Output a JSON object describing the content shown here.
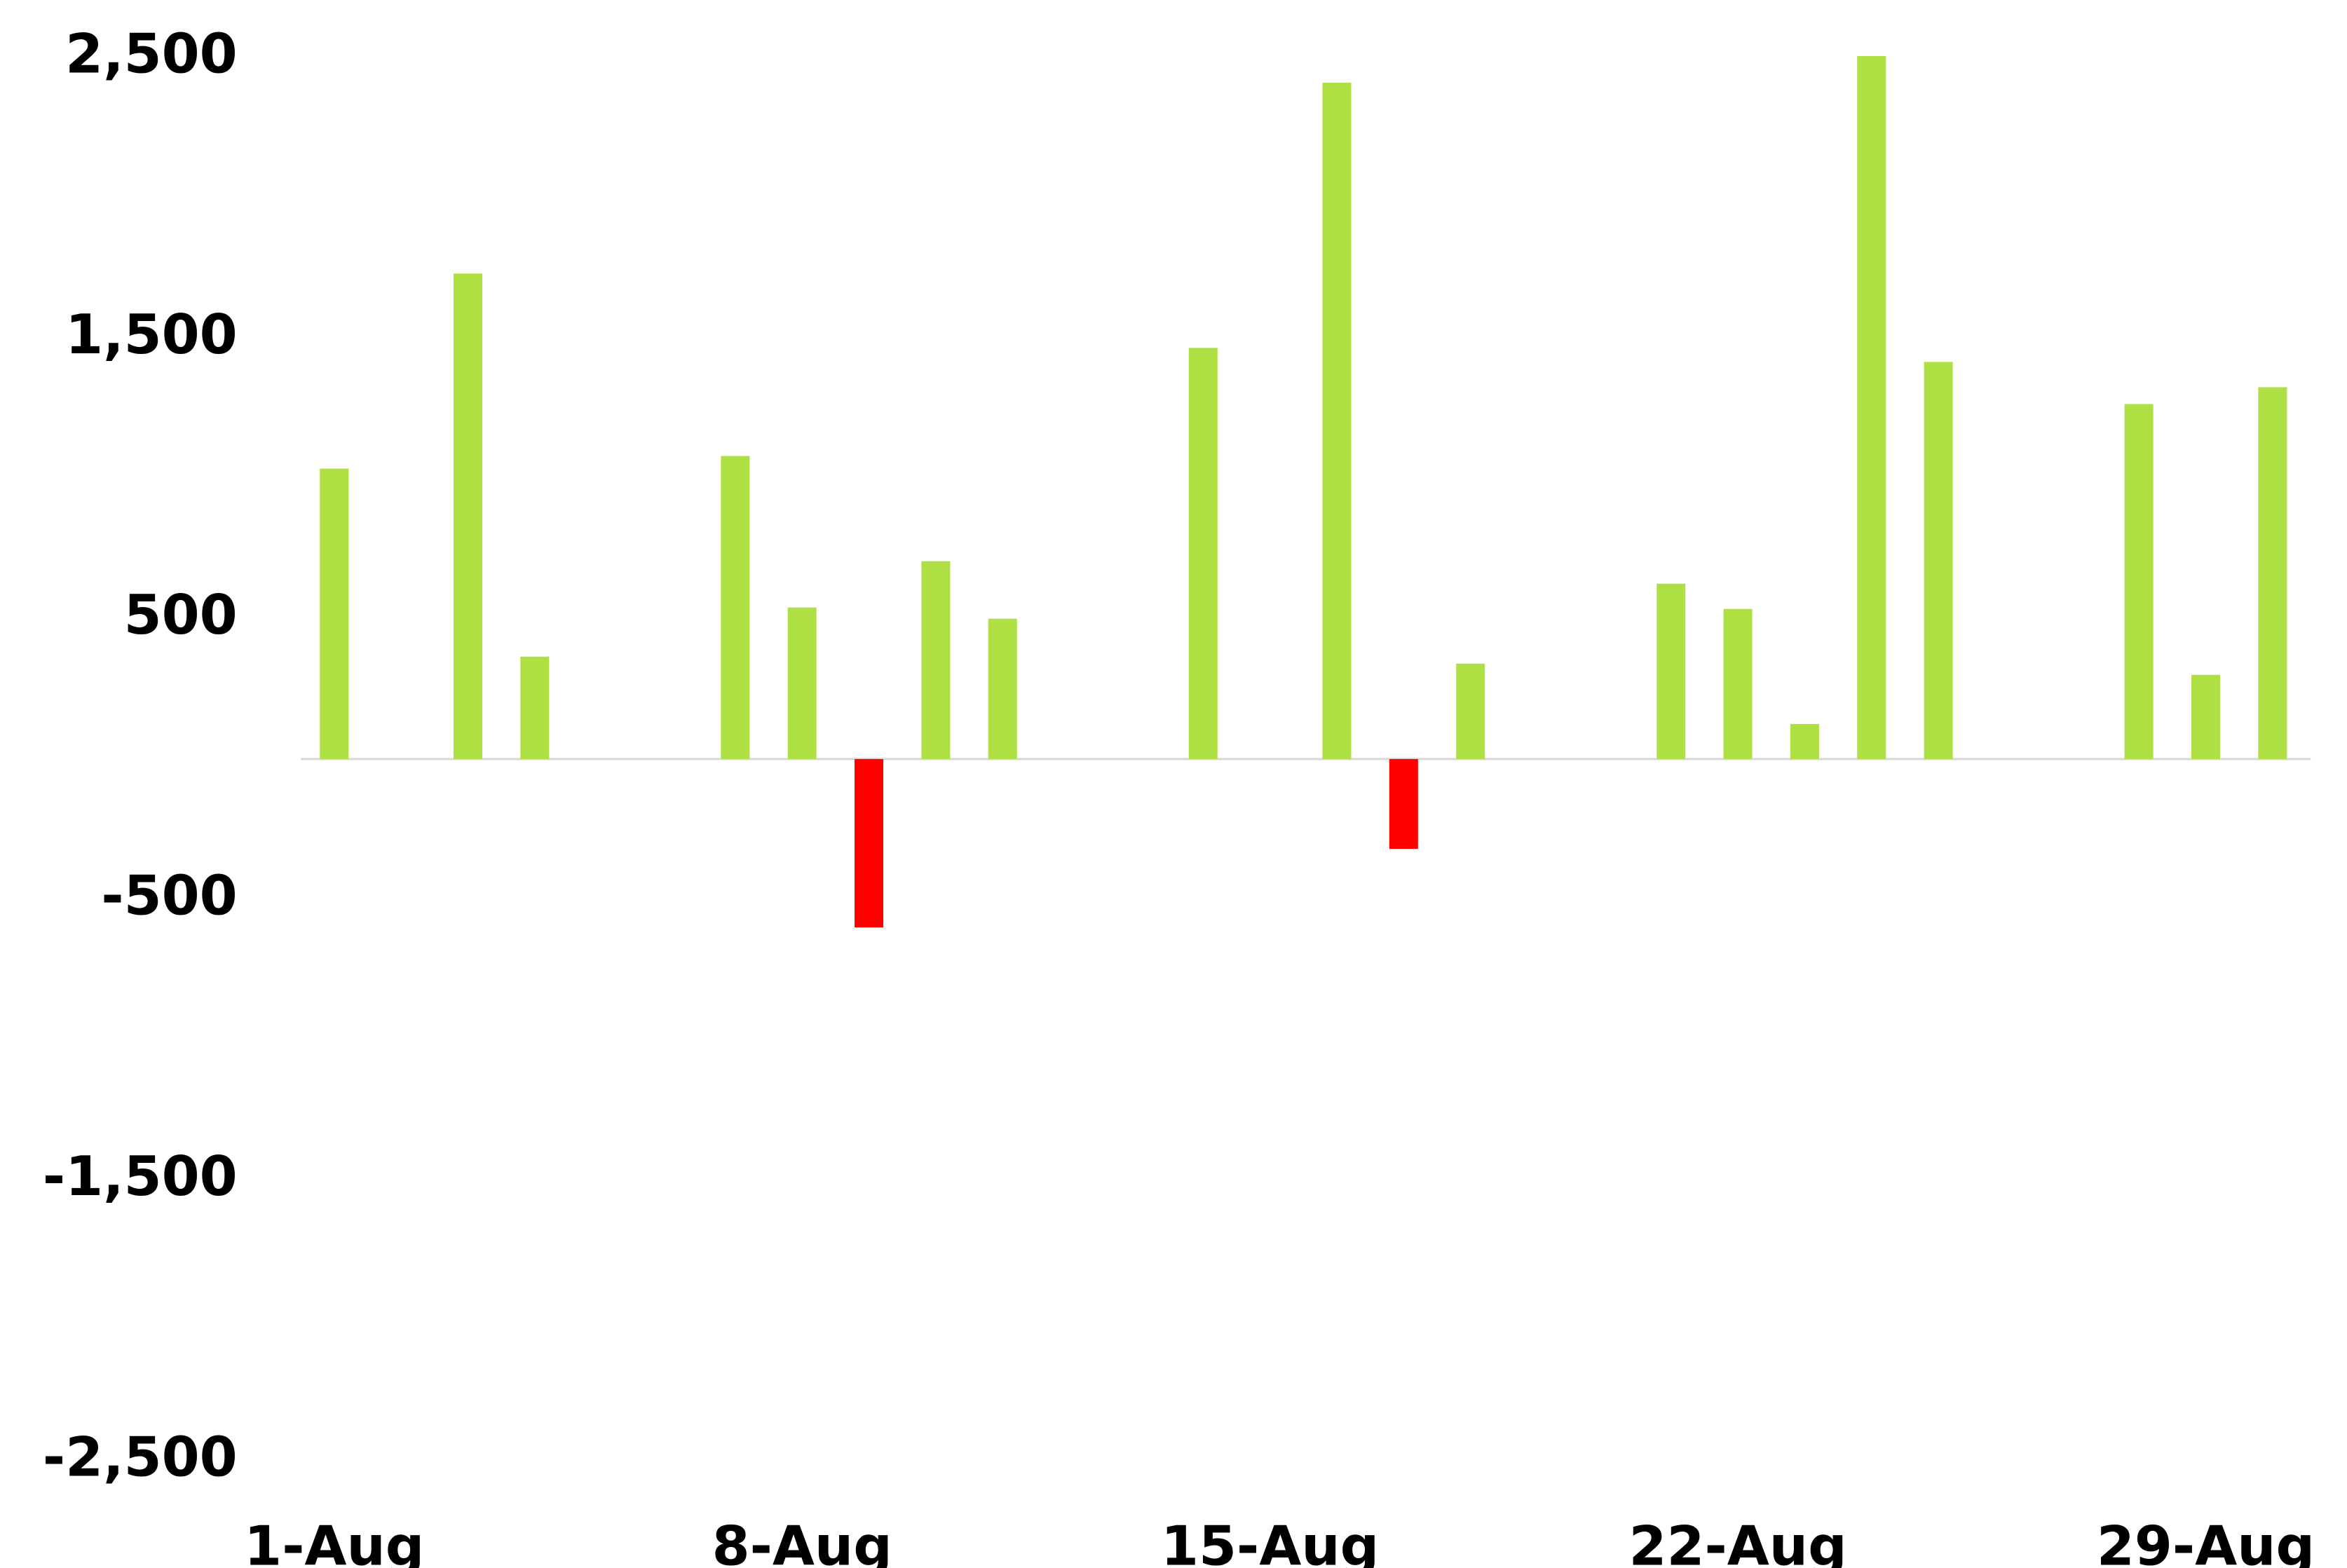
{
  "chart_data": {
    "type": "bar",
    "categories": [
      "1-Aug",
      null,
      null,
      null,
      null,
      null,
      null,
      "8-Aug",
      null,
      null,
      null,
      null,
      null,
      null,
      "15-Aug",
      null,
      null,
      null,
      null,
      null,
      null,
      "22-Aug",
      null,
      null,
      null,
      null,
      null,
      null,
      "29-Aug",
      null
    ],
    "values": [
      1035,
      null,
      1730,
      365,
      null,
      null,
      1080,
      540,
      -600,
      705,
      500,
      null,
      null,
      1465,
      null,
      2410,
      -320,
      340,
      null,
      null,
      625,
      535,
      125,
      2505,
      1415,
      null,
      null,
      1265,
      300,
      1325
    ],
    "color": "#aee043",
    "negative_color": "#ff0000",
    "ylim": [
      -2500,
      2500
    ],
    "yticks": [
      {
        "value": -2500,
        "label": "-2,500"
      },
      {
        "value": -1500,
        "label": "-1,500"
      },
      -500,
      500,
      {
        "value": 1500,
        "label": "1,500"
      },
      {
        "value": 2500,
        "label": "2,500"
      }
    ],
    "grid": false
  }
}
